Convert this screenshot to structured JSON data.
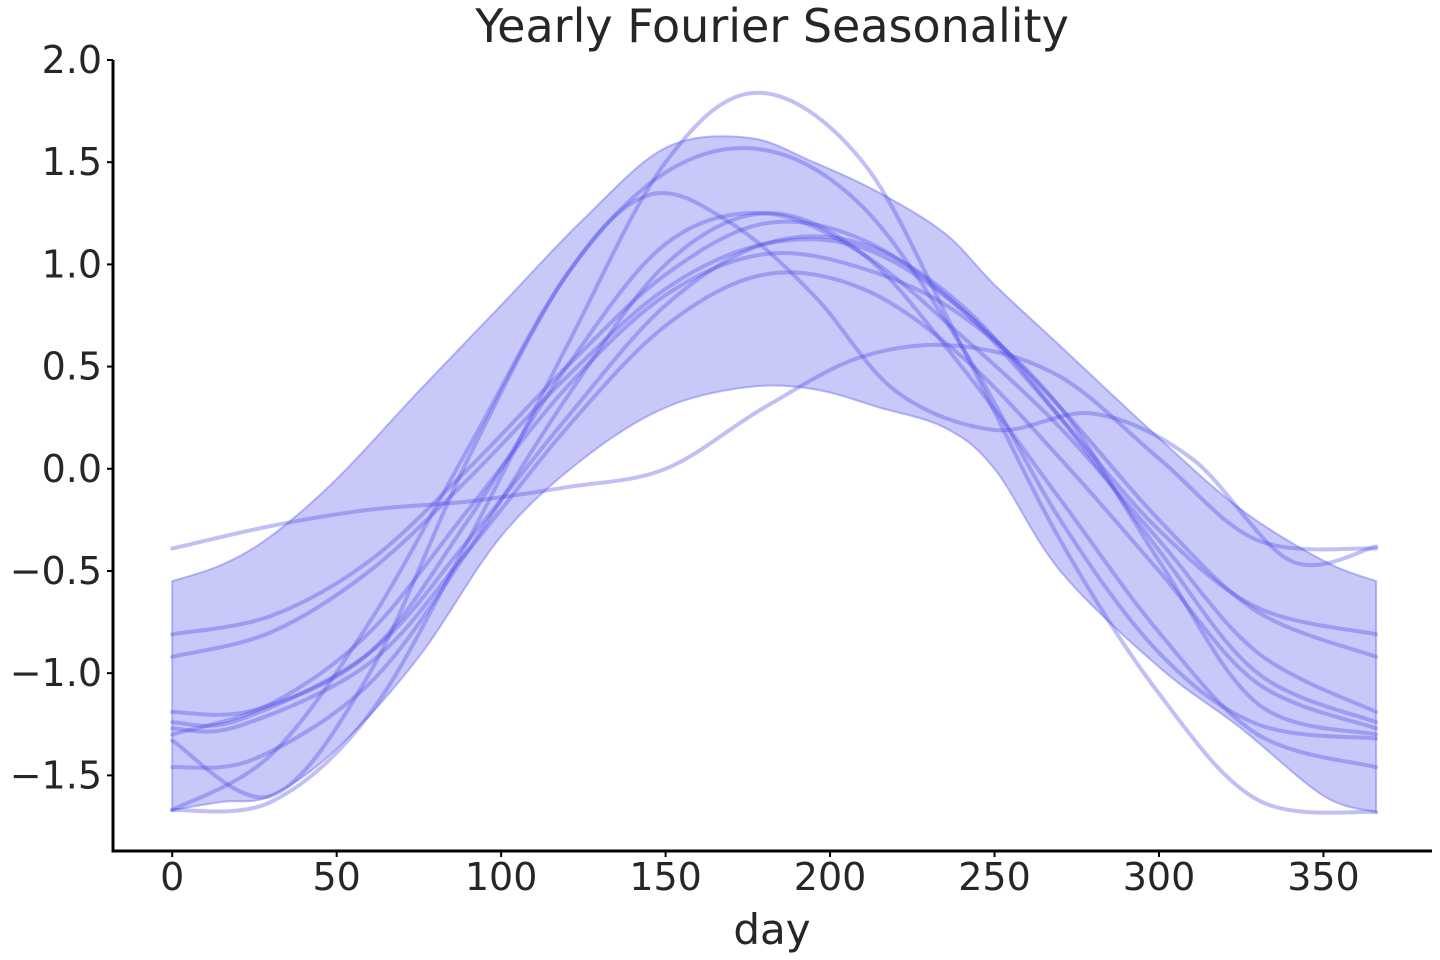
{
  "chart_data": {
    "type": "line",
    "title": "Yearly Fourier Seasonality",
    "xlabel": "day",
    "ylabel": "",
    "xlim": [
      -18,
      383
    ],
    "ylim": [
      -1.87,
      2.0
    ],
    "x_ticks": [
      0,
      50,
      100,
      150,
      200,
      250,
      300,
      350
    ],
    "x_tick_labels": [
      "0",
      "50",
      "100",
      "150",
      "200",
      "250",
      "300",
      "350"
    ],
    "y_ticks": [
      2.0,
      1.5,
      1.0,
      0.5,
      0.0,
      -0.5,
      -1.0,
      -1.5
    ],
    "y_tick_labels": [
      "2.0",
      "1.5",
      "1.0",
      "0.5",
      "0.0",
      "−0.5",
      "−1.0",
      "−1.5"
    ],
    "grid": false,
    "colors": {
      "band": "#6b6bf0",
      "line": "#4a4ae8",
      "axis": "#000000",
      "text": "#262626"
    },
    "band": {
      "name": "",
      "x": [
        0,
        15,
        30,
        50,
        75,
        100,
        125,
        150,
        175,
        195,
        215,
        235,
        250,
        270,
        300,
        325,
        350,
        366
      ],
      "lower": [
        -1.67,
        -1.63,
        -1.6,
        -1.37,
        -0.92,
        -0.33,
        0.05,
        0.3,
        0.4,
        0.39,
        0.3,
        0.2,
        0.0,
        -0.5,
        -0.97,
        -1.27,
        -1.6,
        -1.68
      ],
      "upper": [
        -0.55,
        -0.47,
        -0.33,
        -0.05,
        0.38,
        0.8,
        1.22,
        1.57,
        1.62,
        1.5,
        1.35,
        1.15,
        0.9,
        0.6,
        0.15,
        -0.2,
        -0.45,
        -0.55
      ]
    },
    "series": [
      {
        "name": "",
        "x": [
          0,
          30,
          60,
          90,
          120,
          150,
          178,
          210,
          240,
          270,
          300,
          330,
          366
        ],
        "values": [
          -1.67,
          -1.63,
          -1.2,
          -0.35,
          0.6,
          1.5,
          1.84,
          1.5,
          0.6,
          -0.35,
          -1.1,
          -1.62,
          -1.68
        ]
      },
      {
        "name": "",
        "x": [
          0,
          30,
          60,
          90,
          120,
          150,
          180,
          210,
          240,
          270,
          300,
          330,
          366
        ],
        "values": [
          -0.39,
          -0.28,
          -0.2,
          -0.16,
          -0.09,
          0.0,
          0.3,
          0.55,
          0.6,
          0.45,
          0.05,
          -0.35,
          -0.39
        ]
      },
      {
        "name": "",
        "x": [
          0,
          30,
          60,
          90,
          120,
          150,
          180,
          210,
          240,
          270,
          300,
          330,
          366
        ],
        "values": [
          -0.81,
          -0.72,
          -0.45,
          0.0,
          0.5,
          0.95,
          1.2,
          1.12,
          0.78,
          0.25,
          -0.3,
          -0.68,
          -0.81
        ]
      },
      {
        "name": "",
        "x": [
          0,
          30,
          60,
          90,
          120,
          150,
          180,
          210,
          240,
          270,
          300,
          330,
          366
        ],
        "values": [
          -0.92,
          -0.8,
          -0.5,
          -0.05,
          0.45,
          0.88,
          1.1,
          1.08,
          0.78,
          0.3,
          -0.25,
          -0.7,
          -0.92
        ]
      },
      {
        "name": "",
        "x": [
          0,
          25,
          60,
          90,
          120,
          150,
          180,
          210,
          240,
          270,
          300,
          330,
          366
        ],
        "values": [
          -1.19,
          -1.18,
          -0.9,
          -0.25,
          0.5,
          1.1,
          1.25,
          1.05,
          0.65,
          0.2,
          -0.35,
          -0.9,
          -1.19
        ]
      },
      {
        "name": "",
        "x": [
          0,
          20,
          60,
          90,
          120,
          150,
          180,
          210,
          240,
          270,
          300,
          330,
          366
        ],
        "values": [
          -1.24,
          -1.23,
          -0.9,
          -0.35,
          0.25,
          0.8,
          1.1,
          1.1,
          0.8,
          0.25,
          -0.4,
          -1.0,
          -1.24
        ]
      },
      {
        "name": "",
        "x": [
          0,
          20,
          60,
          90,
          120,
          150,
          180,
          210,
          240,
          270,
          300,
          330,
          366
        ],
        "values": [
          -1.27,
          -1.26,
          -0.95,
          -0.4,
          0.2,
          0.7,
          0.95,
          0.88,
          0.55,
          0.05,
          -0.5,
          -1.05,
          -1.27
        ]
      },
      {
        "name": "",
        "x": [
          0,
          25,
          60,
          90,
          120,
          150,
          180,
          210,
          240,
          270,
          300,
          330,
          366
        ],
        "values": [
          -1.46,
          -1.42,
          -1.05,
          -0.4,
          0.35,
          1.0,
          1.25,
          1.05,
          0.5,
          -0.15,
          -0.8,
          -1.3,
          -1.46
        ]
      },
      {
        "name": "",
        "x": [
          0,
          30,
          60,
          90,
          120,
          150,
          180,
          210,
          240,
          270,
          300,
          330,
          366
        ],
        "values": [
          -1.67,
          -1.4,
          -0.75,
          0.1,
          0.95,
          1.45,
          1.56,
          1.28,
          0.6,
          -0.25,
          -0.9,
          -1.25,
          -1.32
        ]
      },
      {
        "name": "",
        "x": [
          0,
          30,
          60,
          90,
          120,
          145,
          170,
          195,
          220,
          250,
          280,
          310,
          340,
          366
        ],
        "values": [
          -1.33,
          -1.6,
          -1.0,
          0.05,
          0.95,
          1.34,
          1.2,
          0.85,
          0.38,
          0.19,
          0.27,
          0.05,
          -0.45,
          -0.38
        ]
      },
      {
        "name": "",
        "x": [
          0,
          30,
          60,
          90,
          120,
          150,
          180,
          210,
          240,
          270,
          300,
          330,
          366
        ],
        "values": [
          -1.3,
          -1.15,
          -0.8,
          -0.2,
          0.4,
          0.85,
          1.05,
          0.98,
          0.75,
          0.3,
          -0.45,
          -1.15,
          -1.3
        ]
      }
    ]
  }
}
